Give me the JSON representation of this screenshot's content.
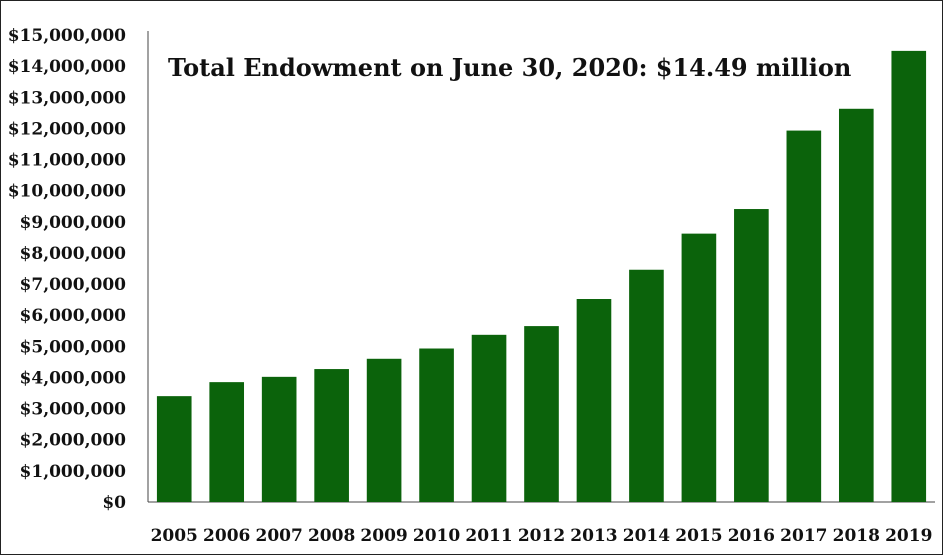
{
  "chart_data": {
    "type": "bar",
    "title": "Total Endowment on June 30, 2020: $14.49 million",
    "categories": [
      "2005",
      "2006",
      "2007",
      "2008",
      "2009",
      "2010",
      "2011",
      "2012",
      "2013",
      "2014",
      "2015",
      "2016",
      "2017",
      "2018",
      "2019"
    ],
    "values": [
      3400000,
      3850000,
      4020000,
      4270000,
      4600000,
      4930000,
      5370000,
      5650000,
      6520000,
      7460000,
      8620000,
      9410000,
      11930000,
      12630000,
      14490000
    ],
    "y_ticks": [
      "$0",
      "$1,000,000",
      "$2,000,000",
      "$3,000,000",
      "$4,000,000",
      "$5,000,000",
      "$6,000,000",
      "$7,000,000",
      "$8,000,000",
      "$9,000,000",
      "$10,000,000",
      "$11,000,000",
      "$12,000,000",
      "$13,000,000",
      "$14,000,000",
      "$15,000,000"
    ],
    "ylim": [
      0,
      15000000
    ],
    "grid": false,
    "legend": "none",
    "bar_color": "#0b630b"
  }
}
